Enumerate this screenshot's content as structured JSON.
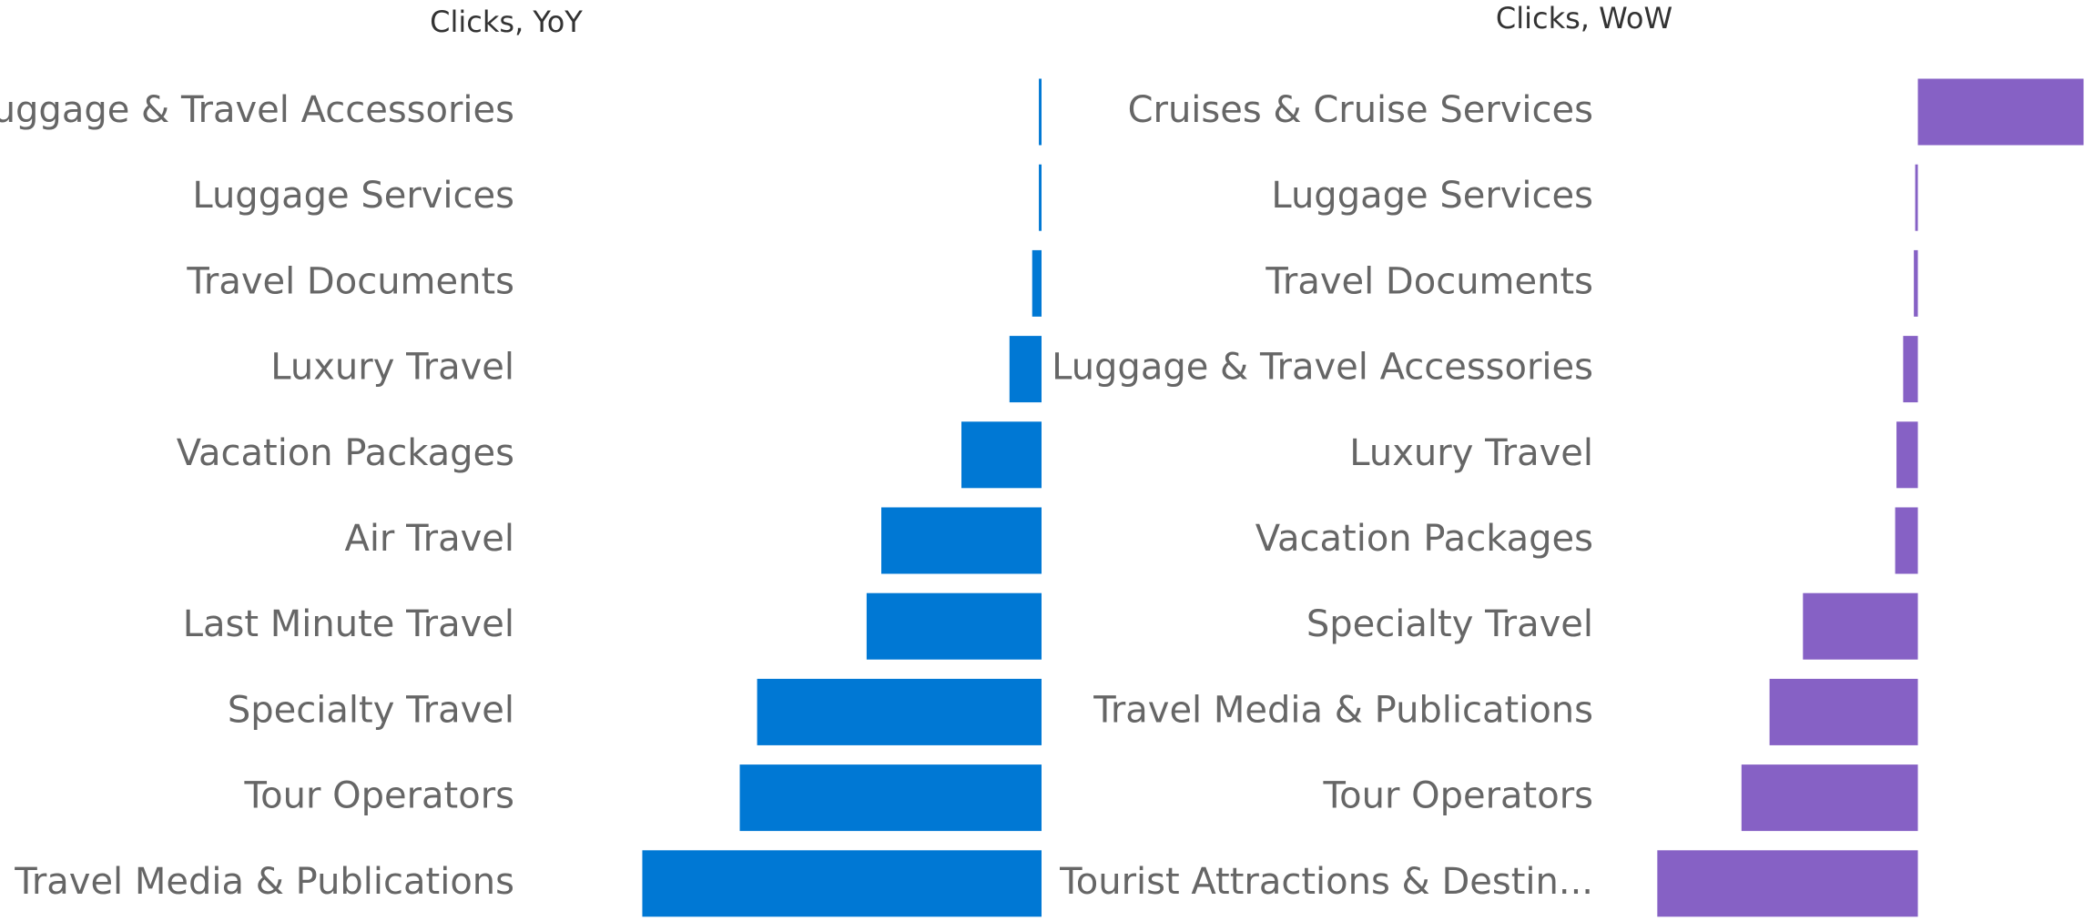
{
  "chart_data": [
    {
      "type": "bar",
      "orientation": "horizontal",
      "title": "Clicks, YoY",
      "color": "#0078d4",
      "categories": [
        "Luggage & Travel Accessories",
        "Luggage Services",
        "Travel Documents",
        "Luxury Travel",
        "Vacation Packages",
        "Air Travel",
        "Last Minute Travel",
        "Specialty Travel",
        "Tour Operators",
        "Travel Media & Publications"
      ],
      "values": [
        -0.2,
        -0.2,
        -0.7,
        -2.4,
        -6.0,
        -12.0,
        -13.1,
        -21.3,
        -22.6,
        -29.9
      ],
      "xlim": [
        -30,
        0
      ]
    },
    {
      "type": "bar",
      "orientation": "horizontal",
      "title": "Clicks, WoW",
      "color": "#8661c5",
      "categories": [
        "Cruises & Cruise Services",
        "Luggage Services",
        "Travel Documents",
        "Luggage & Travel Accessories",
        "Luxury Travel",
        "Vacation Packages",
        "Specialty Travel",
        "Travel Media & Publications",
        "Tour Operators",
        "Tourist Attractions & Destin..."
      ],
      "values": [
        12.4,
        -0.2,
        -0.3,
        -1.1,
        -1.6,
        -1.7,
        -8.6,
        -11.1,
        -13.2,
        -19.5
      ],
      "xlim": [
        -20,
        12.5
      ]
    }
  ]
}
